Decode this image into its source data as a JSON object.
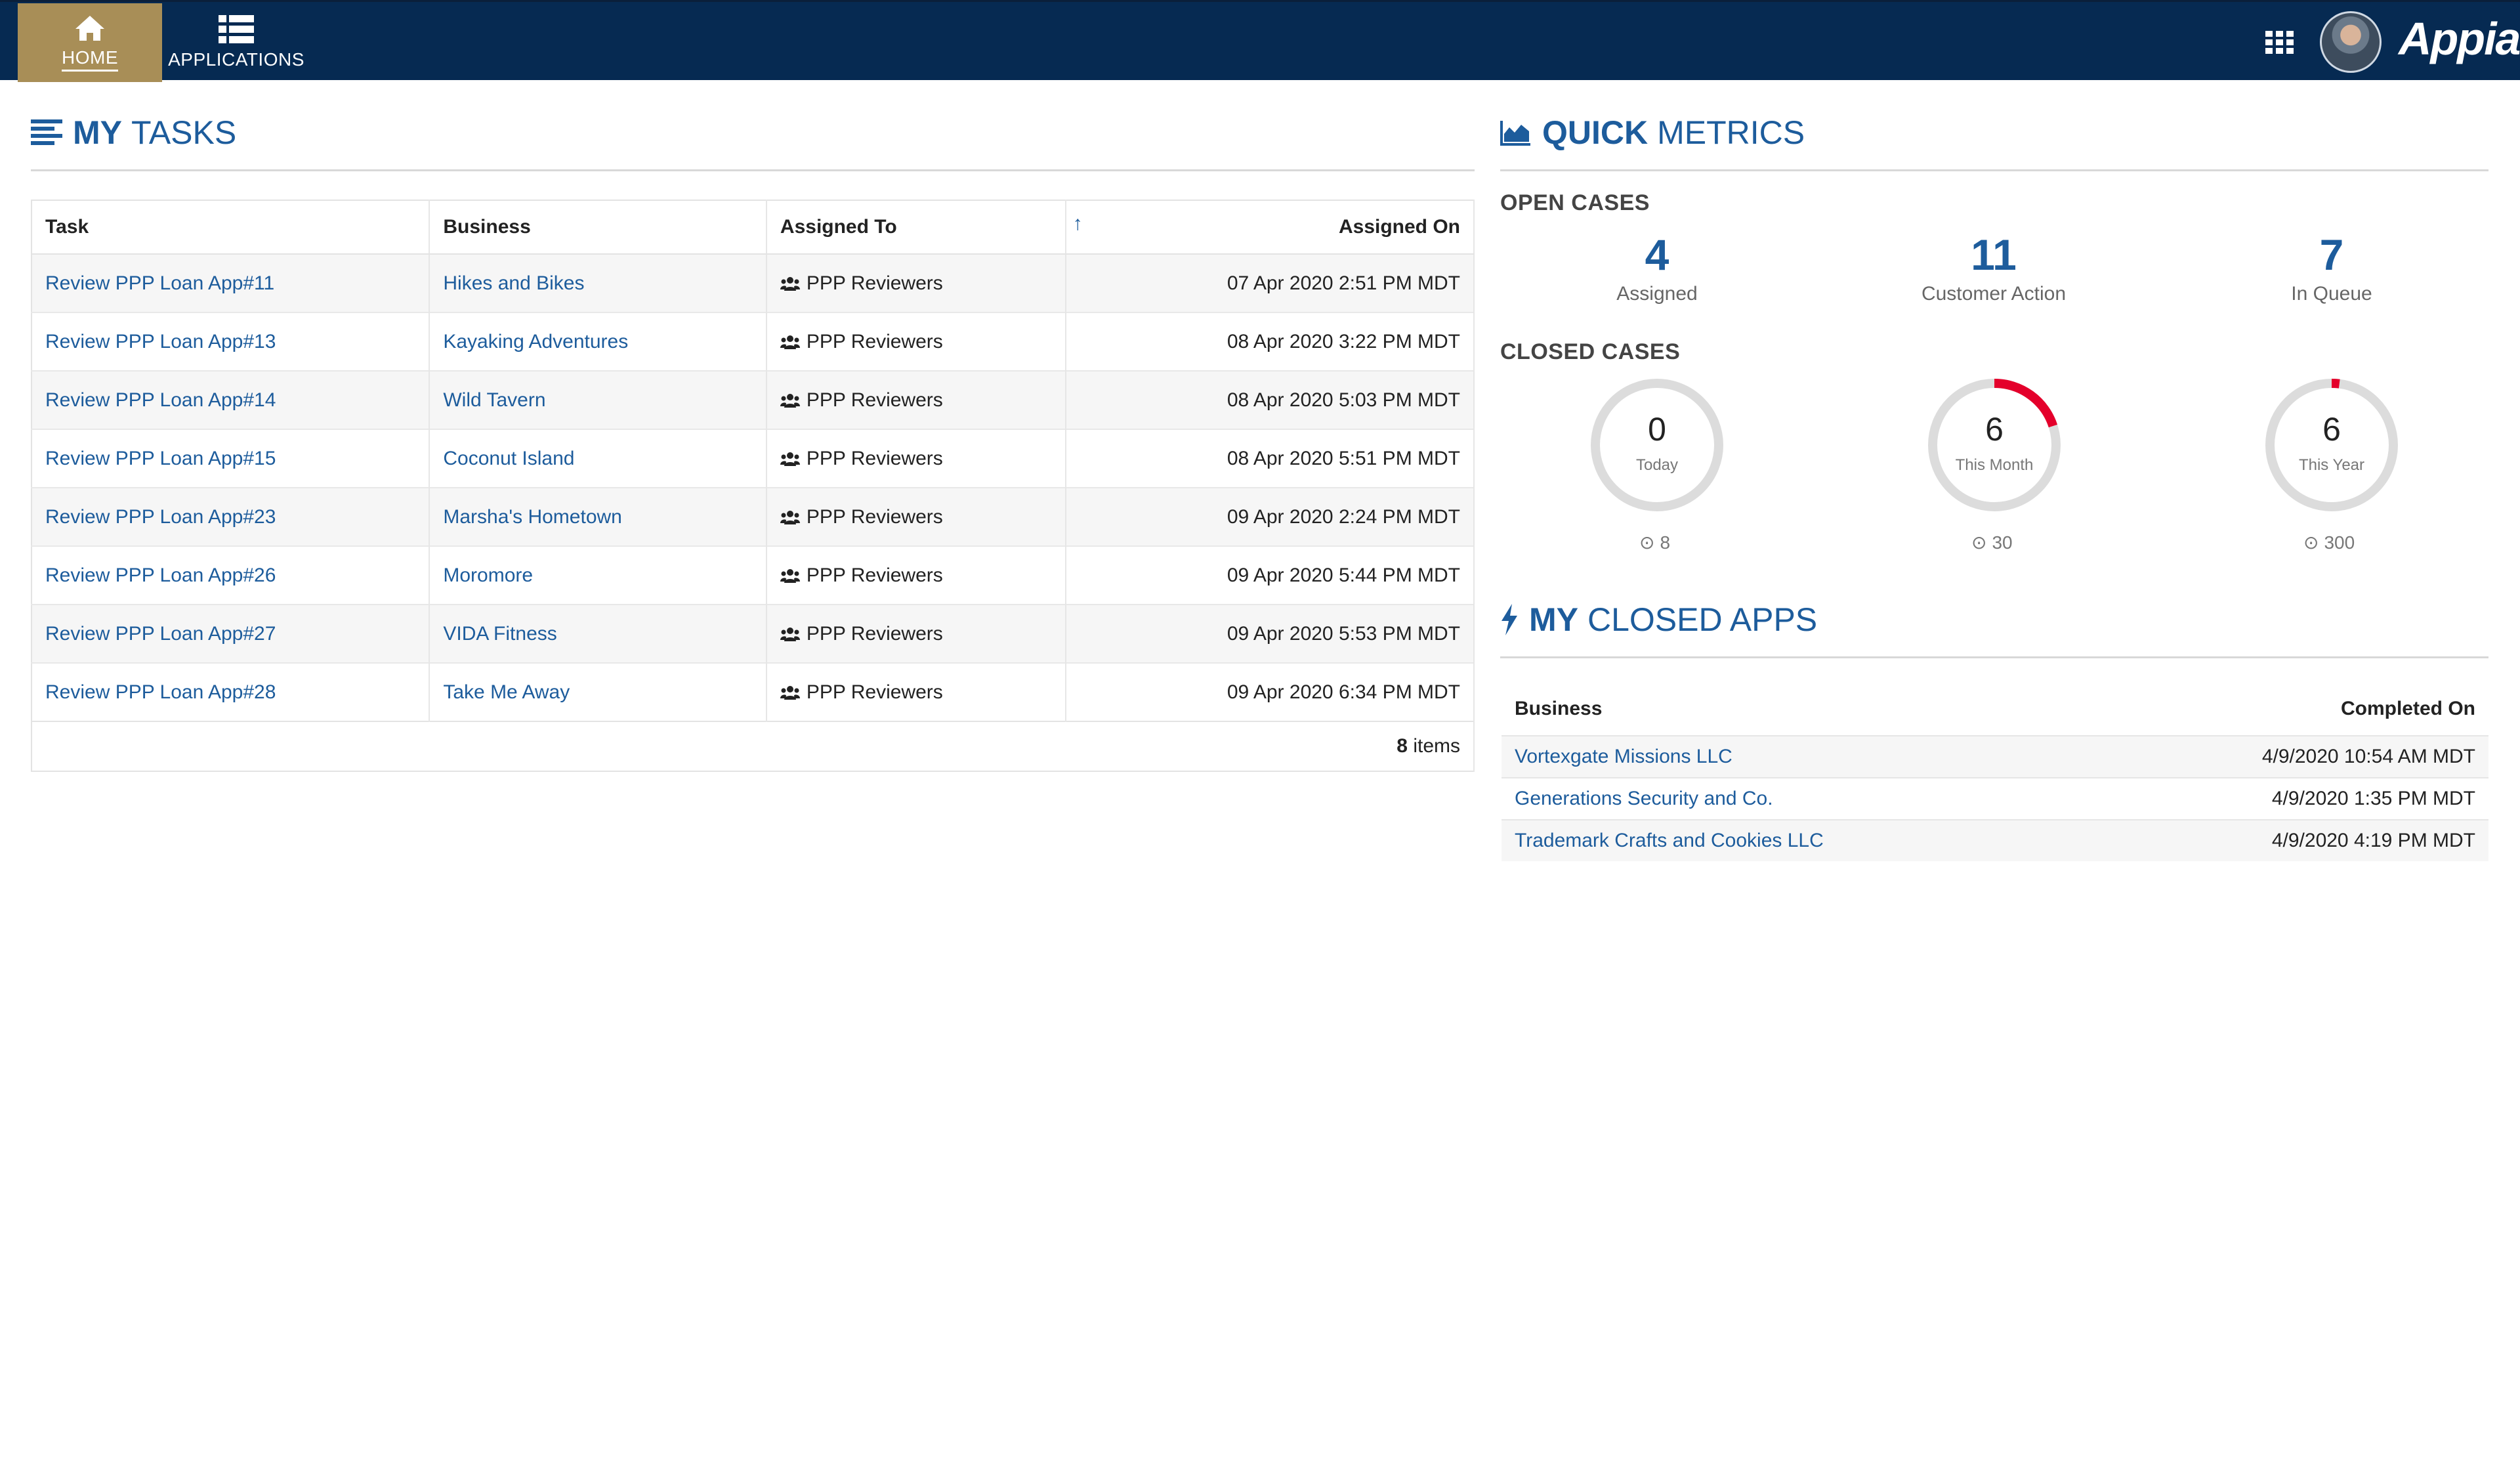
{
  "nav": {
    "home_label": "HOME",
    "applications_label": "APPLICATIONS",
    "brand": "Appian"
  },
  "my_tasks": {
    "title_bold": "MY",
    "title_rest": "TASKS",
    "columns": {
      "task": "Task",
      "business": "Business",
      "assigned_to": "Assigned To",
      "sort_indicator": "↑",
      "assigned_on": "Assigned On"
    },
    "rows": [
      {
        "task": "Review PPP Loan App#11",
        "business": "Hikes and Bikes",
        "assigned_to": "PPP Reviewers",
        "assigned_on": "07 Apr 2020 2:51 PM MDT"
      },
      {
        "task": "Review PPP Loan App#13",
        "business": "Kayaking Adventures",
        "assigned_to": "PPP Reviewers",
        "assigned_on": "08 Apr 2020 3:22 PM MDT"
      },
      {
        "task": "Review PPP Loan App#14",
        "business": "Wild Tavern",
        "assigned_to": "PPP Reviewers",
        "assigned_on": "08 Apr 2020 5:03 PM MDT"
      },
      {
        "task": "Review PPP Loan App#15",
        "business": "Coconut Island",
        "assigned_to": "PPP Reviewers",
        "assigned_on": "08 Apr 2020 5:51 PM MDT"
      },
      {
        "task": "Review PPP Loan App#23",
        "business": "Marsha's Hometown",
        "assigned_to": "PPP Reviewers",
        "assigned_on": "09 Apr 2020 2:24 PM MDT"
      },
      {
        "task": "Review PPP Loan App#26",
        "business": "Moromore",
        "assigned_to": "PPP Reviewers",
        "assigned_on": "09 Apr 2020 5:44 PM MDT"
      },
      {
        "task": "Review PPP Loan App#27",
        "business": "VIDA Fitness",
        "assigned_to": "PPP Reviewers",
        "assigned_on": "09 Apr 2020 5:53 PM MDT"
      },
      {
        "task": "Review PPP Loan App#28",
        "business": "Take Me Away",
        "assigned_to": "PPP Reviewers",
        "assigned_on": "09 Apr 2020 6:34 PM MDT"
      }
    ],
    "footer_count": "8",
    "footer_label": " items"
  },
  "quick_metrics": {
    "title_bold": "QUICK",
    "title_rest": "METRICS",
    "open_cases_label": "OPEN CASES",
    "open": [
      {
        "value": "4",
        "label": "Assigned"
      },
      {
        "value": "11",
        "label": "Customer Action"
      },
      {
        "value": "7",
        "label": "In Queue"
      }
    ],
    "closed_cases_label": "CLOSED CASES",
    "closed": [
      {
        "value": "0",
        "period": "Today",
        "target": "8",
        "progress": 0.0
      },
      {
        "value": "6",
        "period": "This Month",
        "target": "30",
        "progress": 0.2
      },
      {
        "value": "6",
        "period": "This Year",
        "target": "300",
        "progress": 0.02
      }
    ],
    "accent_color": "#e4002b"
  },
  "closed_apps": {
    "title_bold": "MY",
    "title_rest": "CLOSED APPS",
    "columns": {
      "business": "Business",
      "completed_on": "Completed On"
    },
    "rows": [
      {
        "business": "Vortexgate Missions LLC",
        "completed_on": "4/9/2020 10:54 AM MDT"
      },
      {
        "business": "Generations Security and Co.",
        "completed_on": "4/9/2020 1:35 PM MDT"
      },
      {
        "business": "Trademark Crafts and Cookies LLC",
        "completed_on": "4/9/2020 4:19 PM MDT"
      }
    ]
  }
}
